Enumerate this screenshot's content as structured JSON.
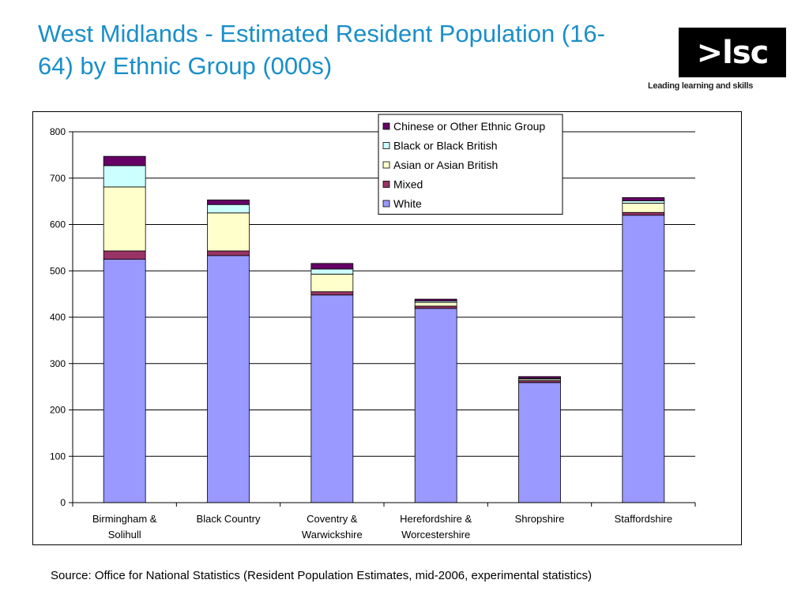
{
  "title": "West Midlands - Estimated Resident Population (16-64) by Ethnic Group (000s)",
  "logo": {
    "text": ">lsc",
    "tagline": "Leading learning and skills"
  },
  "source": "Source: Office for National Statistics (Resident Population Estimates, mid-2006, experimental statistics)",
  "chart_data": {
    "type": "bar",
    "stacked": true,
    "title": "",
    "xlabel": "",
    "ylabel": "",
    "ylim": [
      0,
      800
    ],
    "yticks": [
      0,
      100,
      200,
      300,
      400,
      500,
      600,
      700,
      800
    ],
    "grid": true,
    "legend_position": "top-right",
    "categories": [
      [
        "Birmingham &",
        "Solihull"
      ],
      [
        "Black Country"
      ],
      [
        "Coventry &",
        "Warwickshire"
      ],
      [
        "Herefordshire &",
        "Worcestershire"
      ],
      [
        "Shropshire"
      ],
      [
        "Staffordshire"
      ]
    ],
    "series": [
      {
        "name": "White",
        "color": "#9999ff",
        "values": [
          525,
          533,
          448,
          419,
          259,
          620
        ]
      },
      {
        "name": "Mixed",
        "color": "#993366",
        "values": [
          18,
          10,
          7,
          5,
          4,
          6
        ]
      },
      {
        "name": "Asian or Asian British",
        "color": "#ffffcc",
        "values": [
          138,
          82,
          38,
          8,
          3,
          20
        ]
      },
      {
        "name": "Black or Black British",
        "color": "#ccffff",
        "values": [
          46,
          18,
          11,
          3,
          2,
          5
        ]
      },
      {
        "name": "Chinese or Other Ethnic Group",
        "color": "#660066",
        "values": [
          20,
          10,
          12,
          4,
          4,
          7
        ]
      }
    ]
  }
}
